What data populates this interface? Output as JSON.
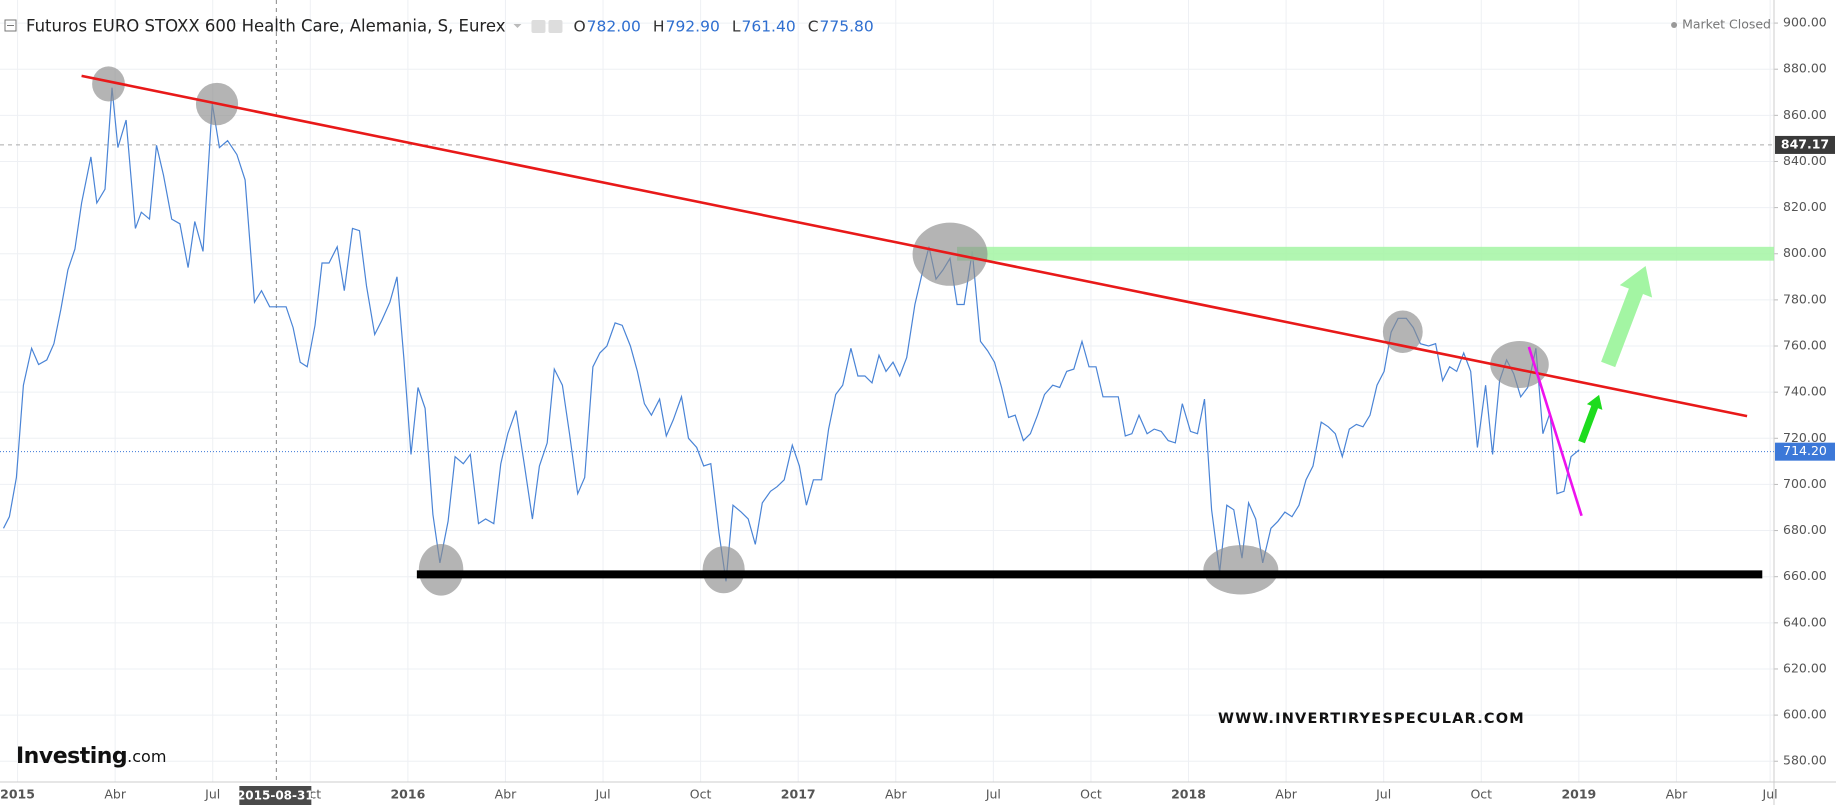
{
  "chart_data": {
    "type": "line",
    "title": "Futuros EURO STOXX 600 Health Care, Alemania, S, Eurex",
    "ohlc": [
      {
        "key": "O",
        "text": "782.00"
      },
      {
        "key": "H",
        "text": "792.90"
      },
      {
        "key": "L",
        "text": "761.40"
      },
      {
        "key": "C",
        "text": "775.80"
      }
    ],
    "status": "Market Closed",
    "watermark": "WWW.INVERTIRYESPECULAR.COM",
    "logo": {
      "brand": "Investing",
      "suffix": ".com"
    },
    "x": [
      2014.964,
      2014.979,
      2014.997,
      2015.015,
      2015.036,
      2015.054,
      2015.075,
      2015.093,
      2015.111,
      2015.129,
      2015.147,
      2015.164,
      2015.188,
      2015.203,
      2015.224,
      2015.242,
      2015.257,
      2015.278,
      2015.302,
      2015.317,
      2015.338,
      2015.356,
      2015.374,
      2015.395,
      2015.416,
      2015.437,
      2015.454,
      2015.475,
      2015.499,
      2015.517,
      2015.538,
      2015.562,
      2015.583,
      2015.607,
      2015.625,
      2015.646,
      2015.667,
      2015.688,
      2015.706,
      2015.724,
      2015.742,
      2015.762,
      2015.78,
      2015.798,
      2015.819,
      2015.837,
      2015.858,
      2015.876,
      2015.894,
      2015.915,
      2015.933,
      2015.954,
      2015.972,
      2015.99,
      2016.008,
      2016.026,
      2016.044,
      2016.064,
      2016.082,
      2016.103,
      2016.121,
      2016.142,
      2016.16,
      2016.181,
      2016.199,
      2016.22,
      2016.238,
      2016.256,
      2016.277,
      2016.298,
      2016.319,
      2016.337,
      2016.357,
      2016.375,
      2016.396,
      2016.414,
      2016.435,
      2016.453,
      2016.474,
      2016.492,
      2016.51,
      2016.531,
      2016.549,
      2016.57,
      2016.588,
      2016.606,
      2016.624,
      2016.645,
      2016.662,
      2016.68,
      2016.701,
      2016.719,
      2016.74,
      2016.758,
      2016.776,
      2016.797,
      2016.815,
      2016.833,
      2016.854,
      2016.872,
      2016.89,
      2016.908,
      2016.929,
      2016.946,
      2016.964,
      2016.985,
      2017.003,
      2017.021,
      2017.039,
      2017.06,
      2017.078,
      2017.096,
      2017.114,
      2017.135,
      2017.153,
      2017.171,
      2017.189,
      2017.207,
      2017.225,
      2017.243,
      2017.26,
      2017.278,
      2017.299,
      2017.317,
      2017.335,
      2017.353,
      2017.371,
      2017.389,
      2017.407,
      2017.425,
      2017.446,
      2017.467,
      2017.485,
      2017.503,
      2017.521,
      2017.539,
      2017.556,
      2017.577,
      2017.595,
      2017.613,
      2017.631,
      2017.652,
      2017.67,
      2017.688,
      2017.706,
      2017.727,
      2017.745,
      2017.763,
      2017.781,
      2017.802,
      2017.82,
      2017.838,
      2017.855,
      2017.873,
      2017.894,
      2017.912,
      2017.93,
      2017.948,
      2017.966,
      2017.984,
      2018.005,
      2018.023,
      2018.041,
      2018.059,
      2018.08,
      2018.098,
      2018.116,
      2018.137,
      2018.154,
      2018.172,
      2018.19,
      2018.211,
      2018.229,
      2018.247,
      2018.265,
      2018.283,
      2018.301,
      2018.319,
      2018.34,
      2018.358,
      2018.376,
      2018.394,
      2018.412,
      2018.43,
      2018.447,
      2018.465,
      2018.483,
      2018.501,
      2018.519,
      2018.537,
      2018.558,
      2018.576,
      2018.594,
      2018.615,
      2018.633,
      2018.651,
      2018.669,
      2018.687,
      2018.705,
      2018.723,
      2018.74,
      2018.761,
      2018.779,
      2018.797,
      2018.815,
      2018.833,
      2018.851,
      2018.869,
      2018.89,
      2018.908,
      2018.926,
      2018.944,
      2018.962,
      2018.98,
      2019.001
    ],
    "series": [
      {
        "color": "#4a84d6",
        "values": [
          681,
          686,
          703,
          743,
          759,
          752,
          754,
          761,
          776,
          793,
          802,
          822,
          842,
          822,
          828,
          872,
          846,
          858,
          811,
          818,
          815,
          847,
          834,
          815,
          813,
          794,
          814,
          801,
          865,
          846,
          849,
          843,
          832,
          779,
          784,
          777,
          777,
          777,
          768,
          753,
          751,
          769,
          796,
          796,
          803,
          784,
          811,
          810,
          786,
          765,
          771,
          779,
          790,
          754,
          713,
          742,
          733,
          687,
          666,
          684,
          712,
          709,
          713,
          683,
          685,
          683,
          709,
          722,
          732,
          709,
          685,
          708,
          718,
          750,
          743,
          722,
          696,
          703,
          751,
          757,
          760,
          770,
          769,
          760,
          749,
          735,
          730,
          737,
          721,
          728,
          738,
          720,
          716,
          708,
          709,
          679,
          658,
          691,
          688,
          685,
          674,
          692,
          697,
          699,
          702,
          717,
          708,
          691,
          702,
          702,
          724,
          739,
          743,
          759,
          747,
          747,
          744,
          756,
          749,
          753,
          747,
          755,
          778,
          791,
          803,
          789,
          793,
          798,
          778,
          778,
          801,
          762,
          758,
          753,
          742,
          729,
          730,
          719,
          722,
          730,
          739,
          743,
          742,
          749,
          750,
          762,
          751,
          751,
          738,
          738,
          738,
          721,
          722,
          730,
          722,
          724,
          723,
          719,
          718,
          735,
          723,
          722,
          737,
          689,
          662,
          691,
          689,
          668,
          692,
          685,
          666,
          681,
          684,
          688,
          686,
          691,
          702,
          708,
          727,
          725,
          722,
          712,
          724,
          726,
          725,
          730,
          743,
          749,
          766,
          772,
          772,
          768,
          761,
          760,
          761,
          745,
          751,
          749,
          757,
          749,
          716,
          743,
          713,
          745,
          754,
          748,
          738,
          742,
          759,
          722,
          731,
          696,
          697,
          712,
          715
        ]
      }
    ],
    "xlim": [
      2014.955,
      2019.5
    ],
    "xticks": [
      2015,
      {
        "value": 2015.25,
        "label": "Abr"
      },
      {
        "value": 2015.5,
        "label": "Jul"
      },
      {
        "value": 2015.75,
        "label": "Oct"
      },
      2016,
      {
        "value": 2016.25,
        "label": "Abr"
      },
      {
        "value": 2016.5,
        "label": "Jul"
      },
      {
        "value": 2016.75,
        "label": "Oct"
      },
      2017,
      {
        "value": 2017.25,
        "label": "Abr"
      },
      {
        "value": 2017.5,
        "label": "Jul"
      },
      {
        "value": 2017.75,
        "label": "Oct"
      },
      2018,
      {
        "value": 2018.25,
        "label": "Abr"
      },
      {
        "value": 2018.5,
        "label": "Jul"
      },
      {
        "value": 2018.75,
        "label": "Oct"
      },
      2019,
      {
        "value": 2019.25,
        "label": "Abr"
      },
      {
        "value": 2019.49,
        "label": "Jul"
      }
    ],
    "ylim": [
      571,
      910
    ],
    "yticks": [
      {
        "value": 580,
        "label": "580.00"
      },
      {
        "value": 600,
        "label": "600.00"
      },
      {
        "value": 620,
        "label": "620.00"
      },
      {
        "value": 640,
        "label": "640.00"
      },
      {
        "value": 660,
        "label": "660.00"
      },
      {
        "value": 680,
        "label": "680.00"
      },
      {
        "value": 700,
        "label": "700.00"
      },
      {
        "value": 720,
        "label": "720.00"
      },
      {
        "value": 740,
        "label": "740.00"
      },
      {
        "value": 760,
        "label": "760.00"
      },
      {
        "value": 780,
        "label": "780.00"
      },
      {
        "value": 800,
        "label": "800.00"
      },
      {
        "value": 820,
        "label": "820.00"
      },
      {
        "value": 840,
        "label": "840.00"
      },
      {
        "value": 860,
        "label": "860.00"
      },
      {
        "value": 880,
        "label": "880.00"
      },
      {
        "value": 900,
        "label": "900.00"
      }
    ],
    "grid": true,
    "crosshair": {
      "x": 2015.663,
      "x_label": "2015-08-31",
      "y": 847.17,
      "y_label": "847.17"
    },
    "last_price": {
      "value": 714.2,
      "label": "714.20",
      "color": "#3c78d8"
    },
    "drawings": {
      "ellipses": [
        {
          "x": 2015.233,
          "y": 873.6,
          "rx": 0.042,
          "ry": 7.6
        },
        {
          "x": 2015.511,
          "y": 864.9,
          "rx": 0.054,
          "ry": 9.2
        },
        {
          "x": 2017.389,
          "y": 799.8,
          "rx": 0.096,
          "ry": 13.7
        },
        {
          "x": 2016.085,
          "y": 663,
          "rx": 0.057,
          "ry": 11.2
        },
        {
          "x": 2016.809,
          "y": 663,
          "rx": 0.054,
          "ry": 10.2
        },
        {
          "x": 2018.134,
          "y": 663,
          "rx": 0.096,
          "ry": 10.7
        },
        {
          "x": 2018.549,
          "y": 766.2,
          "rx": 0.051,
          "ry": 9.2
        },
        {
          "x": 2018.848,
          "y": 752,
          "rx": 0.075,
          "ry": 10.2
        }
      ],
      "resistance_band": {
        "x1": 2017.407,
        "x2": 2019.5,
        "y1": 797,
        "y2": 803,
        "color": "#a3f5a3"
      },
      "support": {
        "x1": 2016.023,
        "x2": 2019.47,
        "y": 661,
        "color": "#000000"
      },
      "trendlines": [
        {
          "x1": 2015.164,
          "y1": 877.1,
          "x2": 2019.431,
          "y2": 729.6,
          "color": "#e81919"
        },
        {
          "x1": 2018.872,
          "y1": 759.6,
          "x2": 2019.007,
          "y2": 686.4,
          "color": "#ee11ee"
        }
      ],
      "arrows": [
        {
          "x1": 2019.075,
          "y1": 752,
          "x2": 2019.171,
          "y2": 794.7,
          "color": "#a3f5a3"
        },
        {
          "x1": 2019.007,
          "y1": 718.4,
          "x2": 2019.052,
          "y2": 738.8,
          "color": "#1edc1e"
        }
      ]
    }
  }
}
